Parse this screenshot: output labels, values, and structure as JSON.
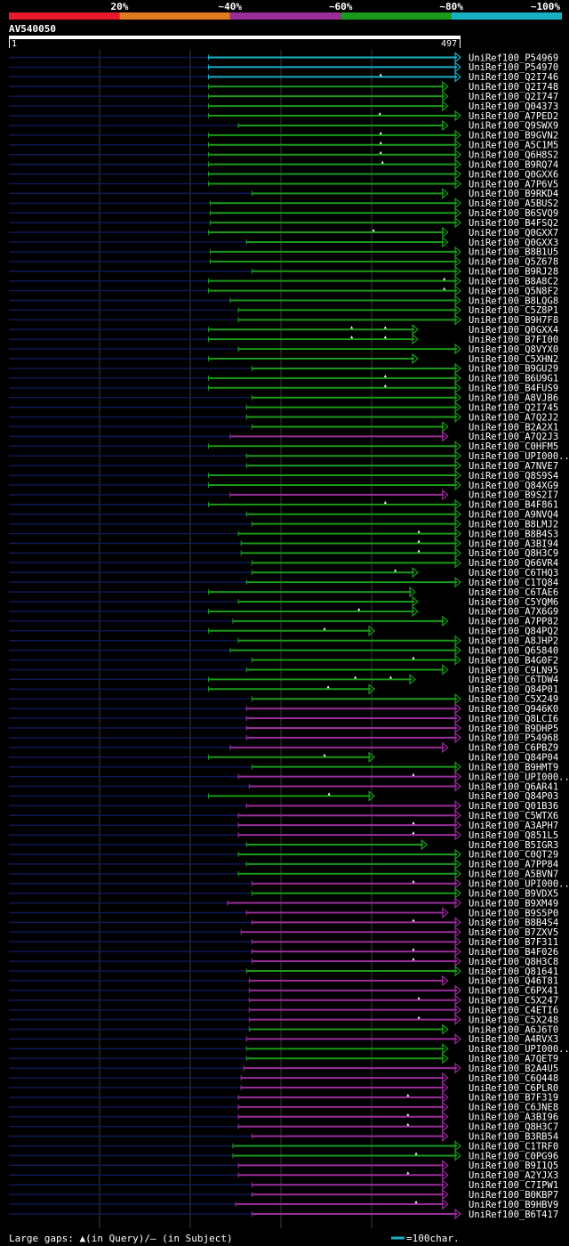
{
  "chart_data": {
    "type": "alignment-overview",
    "identity_legend": [
      {
        "label": "",
        "color": "#e8192c"
      },
      {
        "label": "20%",
        "color": "#e07a1f"
      },
      {
        "label": "~40%",
        "color": "#9b2d9b"
      },
      {
        "label": "~60%",
        "color": "#1a9a1a"
      },
      {
        "label": "~80%",
        "color": "#1ab0c4"
      },
      {
        "label": "~100%",
        "color": ""
      }
    ],
    "query": {
      "name": "AV540050",
      "start": "1",
      "end": "497",
      "length": 497
    },
    "colors": {
      "cyan": "#1ab0c4",
      "green": "#1a9a1a",
      "purple": "#9b2d9b",
      "navy": "#0f1a5a"
    },
    "hits": [
      {
        "id": "UniRef100_P54969",
        "s": 220,
        "e": 497,
        "c": "cyan",
        "g": []
      },
      {
        "id": "UniRef100_P54970",
        "s": 220,
        "e": 497,
        "c": "cyan",
        "g": []
      },
      {
        "id": "UniRef100_Q2I746",
        "s": 220,
        "e": 497,
        "c": "cyan",
        "g": [
          410
        ]
      },
      {
        "id": "UniRef100_Q2I748",
        "s": 220,
        "e": 483,
        "c": "green",
        "g": []
      },
      {
        "id": "UniRef100_Q2I747",
        "s": 220,
        "e": 483,
        "c": "green",
        "g": []
      },
      {
        "id": "UniRef100_Q04373",
        "s": 220,
        "e": 483,
        "c": "green",
        "g": []
      },
      {
        "id": "UniRef100_A7PED2",
        "s": 220,
        "e": 497,
        "c": "green",
        "g": [
          409
        ]
      },
      {
        "id": "UniRef100_Q9SWX9",
        "s": 253,
        "e": 483,
        "c": "green",
        "g": []
      },
      {
        "id": "UniRef100_B9GVN2",
        "s": 220,
        "e": 497,
        "c": "green",
        "g": [
          410
        ]
      },
      {
        "id": "UniRef100_A5C1M5",
        "s": 220,
        "e": 497,
        "c": "green",
        "g": [
          410
        ]
      },
      {
        "id": "UniRef100_Q6H8S2",
        "s": 220,
        "e": 497,
        "c": "green",
        "g": [
          410
        ]
      },
      {
        "id": "UniRef100_B9RQ74",
        "s": 220,
        "e": 497,
        "c": "green",
        "g": [
          412
        ]
      },
      {
        "id": "UniRef100_Q0GXX6",
        "s": 220,
        "e": 497,
        "c": "green",
        "g": []
      },
      {
        "id": "UniRef100_A7P6V5",
        "s": 220,
        "e": 497,
        "c": "green",
        "g": []
      },
      {
        "id": "UniRef100_B9RKD4",
        "s": 268,
        "e": 483,
        "c": "green",
        "g": []
      },
      {
        "id": "UniRef100_A5BUS2",
        "s": 222,
        "e": 497,
        "c": "green",
        "g": []
      },
      {
        "id": "UniRef100_B6SVQ9",
        "s": 222,
        "e": 497,
        "c": "green",
        "g": []
      },
      {
        "id": "UniRef100_B4FSQ2",
        "s": 222,
        "e": 497,
        "c": "green",
        "g": []
      },
      {
        "id": "UniRef100_Q0GXX7",
        "s": 220,
        "e": 483,
        "c": "green",
        "g": [
          402
        ]
      },
      {
        "id": "UniRef100_Q0GXX3",
        "s": 262,
        "e": 483,
        "c": "green",
        "g": []
      },
      {
        "id": "UniRef100_B8B1U5",
        "s": 222,
        "e": 497,
        "c": "green",
        "g": []
      },
      {
        "id": "UniRef100_Q5Z678",
        "s": 222,
        "e": 497,
        "c": "green",
        "g": []
      },
      {
        "id": "UniRef100_B9RJ28",
        "s": 268,
        "e": 497,
        "c": "green",
        "g": []
      },
      {
        "id": "UniRef100_B8A8C2",
        "s": 220,
        "e": 497,
        "c": "green",
        "g": [
          480
        ]
      },
      {
        "id": "UniRef100_Q5N8F2",
        "s": 220,
        "e": 497,
        "c": "green",
        "g": [
          480
        ]
      },
      {
        "id": "UniRef100_B8LQG8",
        "s": 244,
        "e": 497,
        "c": "green",
        "g": []
      },
      {
        "id": "UniRef100_C5Z8P1",
        "s": 253,
        "e": 497,
        "c": "green",
        "g": []
      },
      {
        "id": "UniRef100_B9H7F8",
        "s": 253,
        "e": 497,
        "c": "green",
        "g": []
      },
      {
        "id": "UniRef100_Q0GXX4",
        "s": 220,
        "e": 450,
        "c": "green",
        "g": [
          378,
          415
        ]
      },
      {
        "id": "UniRef100_B7FI00",
        "s": 220,
        "e": 450,
        "c": "green",
        "g": [
          378,
          415
        ]
      },
      {
        "id": "UniRef100_Q8VYX0",
        "s": 253,
        "e": 497,
        "c": "green",
        "g": []
      },
      {
        "id": "UniRef100_C5XHN2",
        "s": 220,
        "e": 450,
        "c": "green",
        "g": []
      },
      {
        "id": "UniRef100_B9GU29",
        "s": 268,
        "e": 497,
        "c": "green",
        "g": []
      },
      {
        "id": "UniRef100_B6U9G1",
        "s": 220,
        "e": 497,
        "c": "green",
        "g": [
          415
        ]
      },
      {
        "id": "UniRef100_B4FUS9",
        "s": 220,
        "e": 497,
        "c": "green",
        "g": [
          415
        ]
      },
      {
        "id": "UniRef100_A8VJB6",
        "s": 268,
        "e": 497,
        "c": "green",
        "g": []
      },
      {
        "id": "UniRef100_Q2I745",
        "s": 262,
        "e": 497,
        "c": "green",
        "g": []
      },
      {
        "id": "UniRef100_A7Q2J2",
        "s": 262,
        "e": 497,
        "c": "green",
        "g": []
      },
      {
        "id": "UniRef100_B2A2X1",
        "s": 268,
        "e": 483,
        "c": "green",
        "g": []
      },
      {
        "id": "UniRef100_A7Q2J3",
        "s": 244,
        "e": 483,
        "c": "purple",
        "g": []
      },
      {
        "id": "UniRef100_C0HFM5",
        "s": 220,
        "e": 497,
        "c": "green",
        "g": []
      },
      {
        "id": "UniRef100_UPI000..",
        "s": 262,
        "e": 497,
        "c": "green",
        "g": []
      },
      {
        "id": "UniRef100_A7NVE7",
        "s": 262,
        "e": 497,
        "c": "green",
        "g": []
      },
      {
        "id": "UniRef100_Q8S9S4",
        "s": 220,
        "e": 497,
        "c": "green",
        "g": []
      },
      {
        "id": "UniRef100_Q84XG9",
        "s": 220,
        "e": 497,
        "c": "green",
        "g": []
      },
      {
        "id": "UniRef100_B9S2I7",
        "s": 244,
        "e": 483,
        "c": "purple",
        "g": []
      },
      {
        "id": "UniRef100_B4F861",
        "s": 220,
        "e": 497,
        "c": "green",
        "g": [
          415
        ]
      },
      {
        "id": "UniRef100_A9NVQ4",
        "s": 262,
        "e": 497,
        "c": "green",
        "g": []
      },
      {
        "id": "UniRef100_B8LMJ2",
        "s": 268,
        "e": 497,
        "c": "green",
        "g": []
      },
      {
        "id": "UniRef100_B8B4S3",
        "s": 253,
        "e": 497,
        "c": "green",
        "g": [
          452
        ]
      },
      {
        "id": "UniRef100_A3BI94",
        "s": 256,
        "e": 497,
        "c": "green",
        "g": [
          452
        ]
      },
      {
        "id": "UniRef100_Q8H3C9",
        "s": 256,
        "e": 497,
        "c": "green",
        "g": [
          452
        ]
      },
      {
        "id": "UniRef100_Q66VR4",
        "s": 268,
        "e": 497,
        "c": "green",
        "g": []
      },
      {
        "id": "UniRef100_C6THQ3",
        "s": 268,
        "e": 450,
        "c": "green",
        "g": [
          426
        ]
      },
      {
        "id": "UniRef100_C1TQ84",
        "s": 262,
        "e": 497,
        "c": "green",
        "g": []
      },
      {
        "id": "UniRef100_C6TAE6",
        "s": 220,
        "e": 447,
        "c": "green",
        "g": []
      },
      {
        "id": "UniRef100_C5YQM6",
        "s": 253,
        "e": 450,
        "c": "green",
        "g": []
      },
      {
        "id": "UniRef100_A7X6G9",
        "s": 220,
        "e": 450,
        "c": "green",
        "g": [
          386
        ]
      },
      {
        "id": "UniRef100_A7PP82",
        "s": 247,
        "e": 483,
        "c": "green",
        "g": []
      },
      {
        "id": "UniRef100_Q84PQ2",
        "s": 220,
        "e": 402,
        "c": "green",
        "g": [
          348
        ]
      },
      {
        "id": "UniRef100_A8JHP2",
        "s": 253,
        "e": 497,
        "c": "green",
        "g": []
      },
      {
        "id": "UniRef100_Q65840",
        "s": 244,
        "e": 497,
        "c": "green",
        "g": []
      },
      {
        "id": "UniRef100_B4G0F2",
        "s": 268,
        "e": 497,
        "c": "green",
        "g": [
          446
        ]
      },
      {
        "id": "UniRef100_C9LN95",
        "s": 262,
        "e": 483,
        "c": "green",
        "g": []
      },
      {
        "id": "UniRef100_C6TDW4",
        "s": 220,
        "e": 447,
        "c": "green",
        "g": [
          382,
          421
        ]
      },
      {
        "id": "UniRef100_Q84P01",
        "s": 220,
        "e": 402,
        "c": "green",
        "g": [
          352
        ]
      },
      {
        "id": "UniRef100_C5X249",
        "s": 268,
        "e": 497,
        "c": "green",
        "g": []
      },
      {
        "id": "UniRef100_Q946K0",
        "s": 262,
        "e": 497,
        "c": "purple",
        "g": []
      },
      {
        "id": "UniRef100_Q8LCI6",
        "s": 262,
        "e": 497,
        "c": "purple",
        "g": []
      },
      {
        "id": "UniRef100_B9DHP5",
        "s": 262,
        "e": 497,
        "c": "purple",
        "g": []
      },
      {
        "id": "UniRef100_P54968",
        "s": 262,
        "e": 497,
        "c": "purple",
        "g": []
      },
      {
        "id": "UniRef100_C6PBZ9",
        "s": 244,
        "e": 483,
        "c": "purple",
        "g": []
      },
      {
        "id": "UniRef100_Q84P04",
        "s": 220,
        "e": 402,
        "c": "green",
        "g": [
          348
        ]
      },
      {
        "id": "UniRef100_B9HMT9",
        "s": 268,
        "e": 497,
        "c": "green",
        "g": []
      },
      {
        "id": "UniRef100_UPI000..",
        "s": 253,
        "e": 497,
        "c": "purple",
        "g": [
          446
        ]
      },
      {
        "id": "UniRef100_Q6AR41",
        "s": 265,
        "e": 497,
        "c": "purple",
        "g": []
      },
      {
        "id": "UniRef100_Q84P03",
        "s": 220,
        "e": 402,
        "c": "green",
        "g": [
          353
        ]
      },
      {
        "id": "UniRef100_Q01B36",
        "s": 262,
        "e": 497,
        "c": "purple",
        "g": []
      },
      {
        "id": "UniRef100_C5WTX6",
        "s": 253,
        "e": 497,
        "c": "purple",
        "g": []
      },
      {
        "id": "UniRef100_A3APH7",
        "s": 253,
        "e": 497,
        "c": "purple",
        "g": [
          446
        ]
      },
      {
        "id": "UniRef100_Q851L5",
        "s": 253,
        "e": 497,
        "c": "purple",
        "g": [
          446
        ]
      },
      {
        "id": "UniRef100_B5IGR3",
        "s": 262,
        "e": 460,
        "c": "green",
        "g": []
      },
      {
        "id": "UniRef100_C0QT29",
        "s": 253,
        "e": 497,
        "c": "green",
        "g": []
      },
      {
        "id": "UniRef100_A7PP84",
        "s": 262,
        "e": 497,
        "c": "green",
        "g": []
      },
      {
        "id": "UniRef100_A5BVN7",
        "s": 253,
        "e": 497,
        "c": "green",
        "g": []
      },
      {
        "id": "UniRef100_UPI000..",
        "s": 268,
        "e": 497,
        "c": "purple",
        "g": [
          446
        ]
      },
      {
        "id": "UniRef100_B9VDX5",
        "s": 268,
        "e": 497,
        "c": "green",
        "g": []
      },
      {
        "id": "UniRef100_B9XM49",
        "s": 241,
        "e": 497,
        "c": "purple",
        "g": []
      },
      {
        "id": "UniRef100_B9S5P0",
        "s": 262,
        "e": 483,
        "c": "purple",
        "g": []
      },
      {
        "id": "UniRef100_B8B4S4",
        "s": 268,
        "e": 497,
        "c": "purple",
        "g": [
          446
        ]
      },
      {
        "id": "UniRef100_B7ZXV5",
        "s": 256,
        "e": 497,
        "c": "purple",
        "g": []
      },
      {
        "id": "UniRef100_B7F311",
        "s": 268,
        "e": 497,
        "c": "purple",
        "g": []
      },
      {
        "id": "UniRef100_B4F026",
        "s": 268,
        "e": 497,
        "c": "purple",
        "g": [
          446
        ]
      },
      {
        "id": "UniRef100_Q8H3C8",
        "s": 268,
        "e": 497,
        "c": "purple",
        "g": [
          446
        ]
      },
      {
        "id": "UniRef100_Q81641",
        "s": 262,
        "e": 497,
        "c": "green",
        "g": []
      },
      {
        "id": "UniRef100_Q46T81",
        "s": 265,
        "e": 483,
        "c": "purple",
        "g": []
      },
      {
        "id": "UniRef100_C6PX41",
        "s": 265,
        "e": 497,
        "c": "purple",
        "g": []
      },
      {
        "id": "UniRef100_C5X247",
        "s": 265,
        "e": 497,
        "c": "purple",
        "g": [
          452
        ]
      },
      {
        "id": "UniRef100_C4ETI6",
        "s": 265,
        "e": 497,
        "c": "purple",
        "g": []
      },
      {
        "id": "UniRef100_C5X248",
        "s": 265,
        "e": 497,
        "c": "purple",
        "g": [
          452
        ]
      },
      {
        "id": "UniRef100_A6J6T0",
        "s": 265,
        "e": 483,
        "c": "green",
        "g": []
      },
      {
        "id": "UniRef100_A4RVX3",
        "s": 262,
        "e": 497,
        "c": "purple",
        "g": []
      },
      {
        "id": "UniRef100_UPI000..",
        "s": 262,
        "e": 483,
        "c": "green",
        "g": []
      },
      {
        "id": "UniRef100_A7QET9",
        "s": 262,
        "e": 483,
        "c": "green",
        "g": []
      },
      {
        "id": "UniRef100_B2A4U5",
        "s": 259,
        "e": 497,
        "c": "purple",
        "g": []
      },
      {
        "id": "UniRef100_C6Q448",
        "s": 256,
        "e": 483,
        "c": "purple",
        "g": []
      },
      {
        "id": "UniRef100_C6PLR0",
        "s": 256,
        "e": 483,
        "c": "purple",
        "g": []
      },
      {
        "id": "UniRef100_B7F319",
        "s": 253,
        "e": 483,
        "c": "purple",
        "g": [
          440
        ]
      },
      {
        "id": "UniRef100_C6JNE8",
        "s": 253,
        "e": 483,
        "c": "purple",
        "g": []
      },
      {
        "id": "UniRef100_A3BI96",
        "s": 253,
        "e": 483,
        "c": "purple",
        "g": [
          440
        ]
      },
      {
        "id": "UniRef100_Q8H3C7",
        "s": 253,
        "e": 483,
        "c": "purple",
        "g": [
          440
        ]
      },
      {
        "id": "UniRef100_B3RB54",
        "s": 268,
        "e": 483,
        "c": "purple",
        "g": []
      },
      {
        "id": "UniRef100_C1TRF0",
        "s": 247,
        "e": 497,
        "c": "green",
        "g": []
      },
      {
        "id": "UniRef100_C0PG96",
        "s": 247,
        "e": 497,
        "c": "green",
        "g": [
          449
        ]
      },
      {
        "id": "UniRef100_B9I1Q5",
        "s": 253,
        "e": 483,
        "c": "purple",
        "g": []
      },
      {
        "id": "UniRef100_A2YJX3",
        "s": 253,
        "e": 483,
        "c": "purple",
        "g": [
          440
        ]
      },
      {
        "id": "UniRef100_C7IPW1",
        "s": 268,
        "e": 483,
        "c": "purple",
        "g": []
      },
      {
        "id": "UniRef100_B0KBP7",
        "s": 268,
        "e": 483,
        "c": "purple",
        "g": []
      },
      {
        "id": "UniRef100_B9HBV9",
        "s": 250,
        "e": 483,
        "c": "purple",
        "g": [
          449
        ]
      },
      {
        "id": "UniRef100_B6T417",
        "s": 268,
        "e": 497,
        "c": "purple",
        "g": []
      }
    ]
  },
  "footer": {
    "gaps_label": "Large gaps: ▲(in Query)/– (in Subject)",
    "scale_label": "=100char."
  }
}
